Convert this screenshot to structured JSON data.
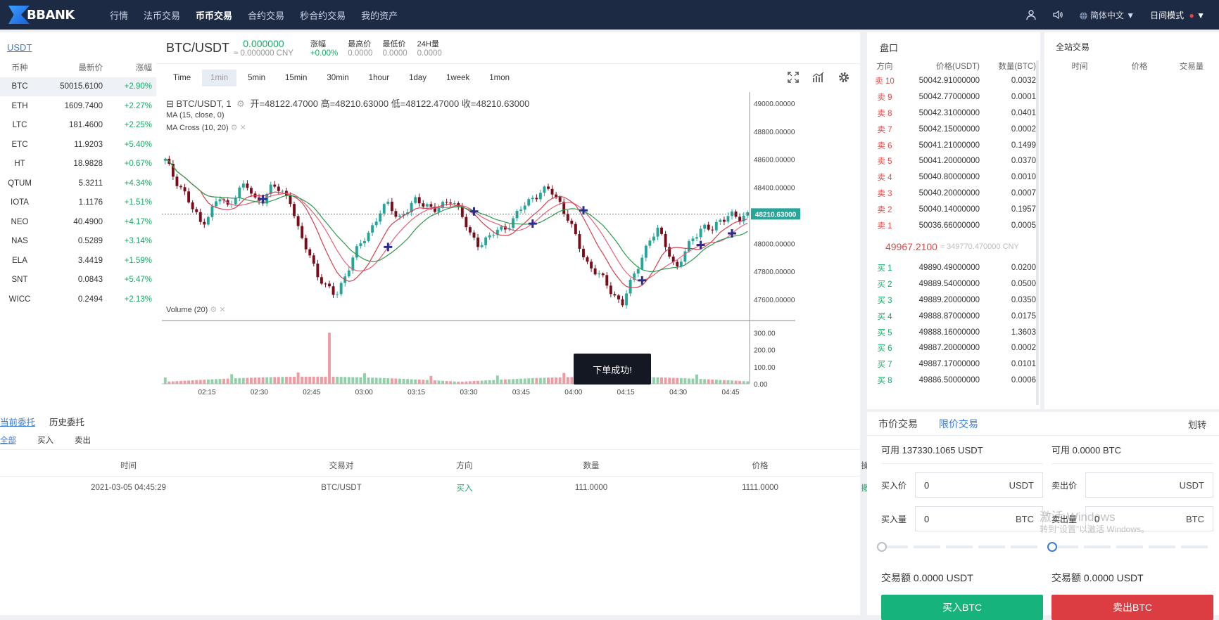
{
  "app": {
    "logo_text": "BBANK",
    "nav": [
      "行情",
      "法币交易",
      "币币交易",
      "合约交易",
      "秒合约交易",
      "我的资产"
    ],
    "nav_active": 2,
    "language": "简体中文",
    "mode": "日间模式"
  },
  "market": {
    "tab": "USDT",
    "headers": [
      "币种",
      "最新价",
      "涨幅"
    ],
    "rows": [
      {
        "coin": "BTC",
        "price": "50015.6100",
        "change": "+2.90%"
      },
      {
        "coin": "ETH",
        "price": "1609.7400",
        "change": "+2.27%"
      },
      {
        "coin": "LTC",
        "price": "181.4600",
        "change": "+2.25%"
      },
      {
        "coin": "ETC",
        "price": "11.9203",
        "change": "+5.40%"
      },
      {
        "coin": "HT",
        "price": "18.9828",
        "change": "+0.67%"
      },
      {
        "coin": "QTUM",
        "price": "5.3211",
        "change": "+4.34%"
      },
      {
        "coin": "IOTA",
        "price": "1.1176",
        "change": "+1.51%"
      },
      {
        "coin": "NEO",
        "price": "40.4900",
        "change": "+4.17%"
      },
      {
        "coin": "NAS",
        "price": "0.5289",
        "change": "+3.14%"
      },
      {
        "coin": "ELA",
        "price": "3.4419",
        "change": "+1.59%"
      },
      {
        "coin": "SNT",
        "price": "0.0843",
        "change": "+5.47%"
      },
      {
        "coin": "WICC",
        "price": "0.2494",
        "change": "+2.13%"
      }
    ]
  },
  "ticker": {
    "pair": "BTC/USDT",
    "last": "0.000000",
    "cny": "≈ 0.000000 CNY",
    "change_label": "涨幅",
    "change": "+0.00%",
    "high_label": "最高价",
    "high": "0.0000",
    "low_label": "最低价",
    "low": "0.0000",
    "vol_label": "24H量",
    "vol": "0.0000"
  },
  "timeframes": [
    "Time",
    "1min",
    "5min",
    "15min",
    "30min",
    "1hour",
    "1day",
    "1week",
    "1mon"
  ],
  "timeframe_active": 1,
  "chart_data": {
    "type": "candlestick",
    "title": "BTC/USDT, 1",
    "ohlc_label": "开=48122.47000  高=48210.63000  低=48122.47000  收=48210.63000",
    "indicators": [
      "MA (15, close, 0)",
      "MA Cross (10, 20)"
    ],
    "volume_label": "Volume (20)",
    "last_price_tag": "48210.63000",
    "last_price": 48210.63,
    "x_ticks": [
      "02:15",
      "02:30",
      "02:45",
      "03:00",
      "03:15",
      "03:30",
      "03:45",
      "04:00",
      "04:15",
      "04:30",
      "04:45"
    ],
    "y_ticks": [
      "49000.00000",
      "48800.00000",
      "48600.00000",
      "48400.00000",
      "48200.00000",
      "48000.00000",
      "47800.00000",
      "47600.00000"
    ],
    "y_values": [
      49000,
      48800,
      48600,
      48400,
      48200,
      48000,
      47800,
      47600
    ],
    "vol_ticks": [
      "300.00",
      "200.00",
      "100.00",
      "0.00"
    ],
    "vol_values": [
      300,
      200,
      100,
      0
    ],
    "ylim": [
      47450,
      49080
    ],
    "vol_lim": [
      0,
      330
    ],
    "close_path": [
      48590,
      48470,
      48380,
      48250,
      48140,
      48220,
      48330,
      48260,
      48370,
      48420,
      48310,
      48320,
      48410,
      48370,
      48310,
      48050,
      47940,
      47780,
      47680,
      47630,
      47760,
      47900,
      48020,
      48110,
      48220,
      48290,
      48180,
      48230,
      48310,
      48290,
      48230,
      48270,
      48330,
      48210,
      48060,
      48000,
      48030,
      48090,
      48120,
      48180,
      48270,
      48330,
      48370,
      48380,
      48300,
      48170,
      48010,
      47870,
      47800,
      47730,
      47640,
      47570,
      47720,
      47880,
      48020,
      48090,
      47980,
      47810,
      47930,
      48060,
      48120,
      48090,
      48170,
      48220,
      48160,
      48210
    ],
    "cross_markers": [
      0.17,
      0.38,
      0.53,
      0.63,
      0.72,
      0.82,
      0.92,
      0.97
    ]
  },
  "toast": "下单成功!",
  "orders": {
    "tabs": [
      "当前委托",
      "历史委托"
    ],
    "sub_tabs": [
      "全部",
      "买入",
      "卖出"
    ],
    "headers": [
      "时间",
      "交易对",
      "方向",
      "数量",
      "价格",
      "操作"
    ],
    "rows": [
      {
        "time": "2021-03-05 04:45:29",
        "pair": "BTC/USDT",
        "side": "买入",
        "amount": "111.0000",
        "price": "1111.0000",
        "action": "撤销"
      }
    ]
  },
  "book": {
    "title": "盘口",
    "headers": [
      "方向",
      "价格(USDT)",
      "数量(BTC)"
    ],
    "asks": [
      {
        "side": "卖 10",
        "price": "50042.91000000",
        "qty": "0.0032"
      },
      {
        "side": "卖 9",
        "price": "50042.77000000",
        "qty": "0.0001"
      },
      {
        "side": "卖 8",
        "price": "50042.31000000",
        "qty": "0.0401"
      },
      {
        "side": "卖 7",
        "price": "50042.15000000",
        "qty": "0.0002"
      },
      {
        "side": "卖 6",
        "price": "50041.21000000",
        "qty": "0.1499"
      },
      {
        "side": "卖 5",
        "price": "50041.20000000",
        "qty": "0.0370"
      },
      {
        "side": "卖 4",
        "price": "50040.80000000",
        "qty": "0.0010"
      },
      {
        "side": "卖 3",
        "price": "50040.20000000",
        "qty": "0.0007"
      },
      {
        "side": "卖 2",
        "price": "50040.14000000",
        "qty": "0.1957"
      },
      {
        "side": "卖 1",
        "price": "50036.66000000",
        "qty": "0.0005"
      }
    ],
    "mid_price": "49967.2100",
    "mid_cny": "≈ 349770.470000 CNY",
    "bids": [
      {
        "side": "买 1",
        "price": "49890.49000000",
        "qty": "0.0200"
      },
      {
        "side": "买 2",
        "price": "49889.54000000",
        "qty": "0.0500"
      },
      {
        "side": "买 3",
        "price": "49889.20000000",
        "qty": "0.0350"
      },
      {
        "side": "买 4",
        "price": "49888.87000000",
        "qty": "0.0175"
      },
      {
        "side": "买 5",
        "price": "49888.16000000",
        "qty": "1.3603"
      },
      {
        "side": "买 6",
        "price": "49887.20000000",
        "qty": "0.0002"
      },
      {
        "side": "买 7",
        "price": "49887.17000000",
        "qty": "0.0101"
      },
      {
        "side": "买 8",
        "price": "49886.50000000",
        "qty": "0.0006"
      }
    ]
  },
  "trades": {
    "title": "全站交易",
    "headers": [
      "时间",
      "价格",
      "交易量"
    ]
  },
  "form": {
    "tabs": [
      "市价交易",
      "限价交易"
    ],
    "tab_active": 1,
    "transfer": "划转",
    "buy": {
      "avail": "可用 137330.1065 USDT",
      "price_label": "买入价",
      "price": "0",
      "price_unit": "USDT",
      "qty_label": "买入量",
      "qty": "0",
      "qty_unit": "BTC",
      "slider": 0,
      "amount": "交易额 0.0000 USDT",
      "button": "买入BTC"
    },
    "sell": {
      "avail": "可用 0.0000 BTC",
      "price_label": "卖出价",
      "price": "",
      "price_unit": "USDT",
      "qty_label": "卖出量",
      "qty": "0",
      "qty_unit": "BTC",
      "slider": 0,
      "amount": "交易额 0.0000 USDT",
      "button": "卖出BTC"
    }
  },
  "watermark": {
    "line1": "激活 Windows",
    "line2": "转到“设置”以激活 Windows。"
  },
  "colors": {
    "up": "#1aa866",
    "down": "#e04848",
    "accent": "#3a7bd5",
    "topbar": "#1d2a44"
  }
}
